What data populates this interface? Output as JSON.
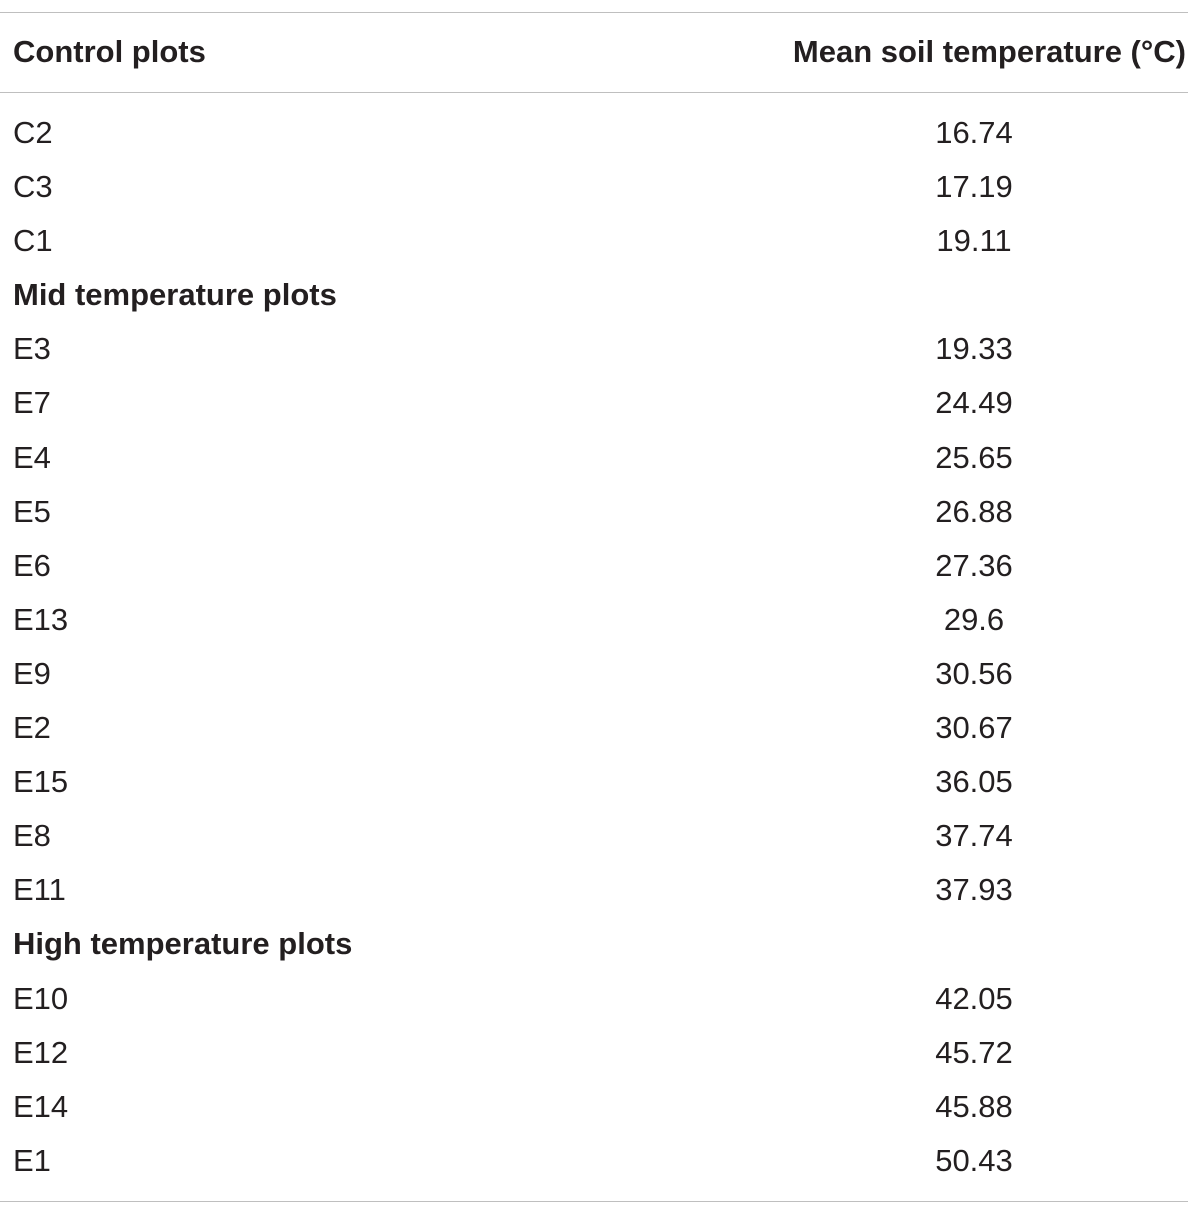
{
  "table": {
    "headers": {
      "col1": "Control plots",
      "col2": "Mean soil temperature (°C)"
    },
    "rows": [
      {
        "type": "data",
        "label": "C2",
        "value": "16.74"
      },
      {
        "type": "data",
        "label": "C3",
        "value": "17.19"
      },
      {
        "type": "data",
        "label": "C1",
        "value": "19.11"
      },
      {
        "type": "group",
        "label": "Mid temperature plots",
        "value": ""
      },
      {
        "type": "data",
        "label": "E3",
        "value": "19.33"
      },
      {
        "type": "data",
        "label": "E7",
        "value": "24.49"
      },
      {
        "type": "data",
        "label": "E4",
        "value": "25.65"
      },
      {
        "type": "data",
        "label": "E5",
        "value": "26.88"
      },
      {
        "type": "data",
        "label": "E6",
        "value": "27.36"
      },
      {
        "type": "data",
        "label": "E13",
        "value": "29.6"
      },
      {
        "type": "data",
        "label": "E9",
        "value": "30.56"
      },
      {
        "type": "data",
        "label": "E2",
        "value": "30.67"
      },
      {
        "type": "data",
        "label": "E15",
        "value": "36.05"
      },
      {
        "type": "data",
        "label": "E8",
        "value": "37.74"
      },
      {
        "type": "data",
        "label": "E11",
        "value": "37.93"
      },
      {
        "type": "group",
        "label": "High temperature plots",
        "value": ""
      },
      {
        "type": "data",
        "label": "E10",
        "value": "42.05"
      },
      {
        "type": "data",
        "label": "E12",
        "value": "45.72"
      },
      {
        "type": "data",
        "label": "E14",
        "value": "45.88"
      },
      {
        "type": "data",
        "label": "E1",
        "value": "50.43"
      }
    ]
  }
}
